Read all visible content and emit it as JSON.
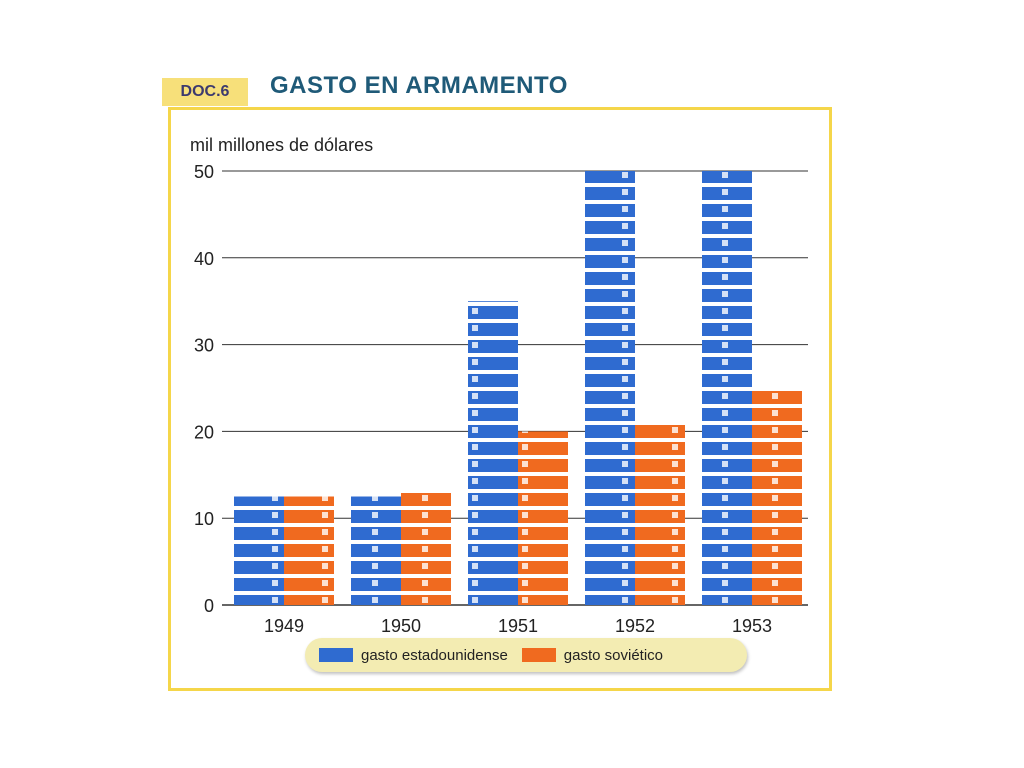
{
  "header": {
    "doc_label": "DOC.6",
    "title": "GASTO EN ARMAMENTO"
  },
  "chart_data": {
    "type": "bar",
    "ylabel": "mil millones de dólares",
    "ylim": [
      0,
      50
    ],
    "yticks": [
      "0",
      "10",
      "20",
      "30",
      "40",
      "50"
    ],
    "categories": [
      "1949",
      "1950",
      "1951",
      "1952",
      "1953"
    ],
    "series": [
      {
        "name": "gasto estadounidense",
        "values": [
          12.5,
          12.5,
          35,
          50,
          50
        ],
        "color": "#2f6bd0"
      },
      {
        "name": "gasto soviético",
        "values": [
          12.5,
          13,
          20,
          21,
          25
        ],
        "color": "#f06a1f"
      }
    ],
    "grid": true,
    "legend_position": "bottom"
  }
}
